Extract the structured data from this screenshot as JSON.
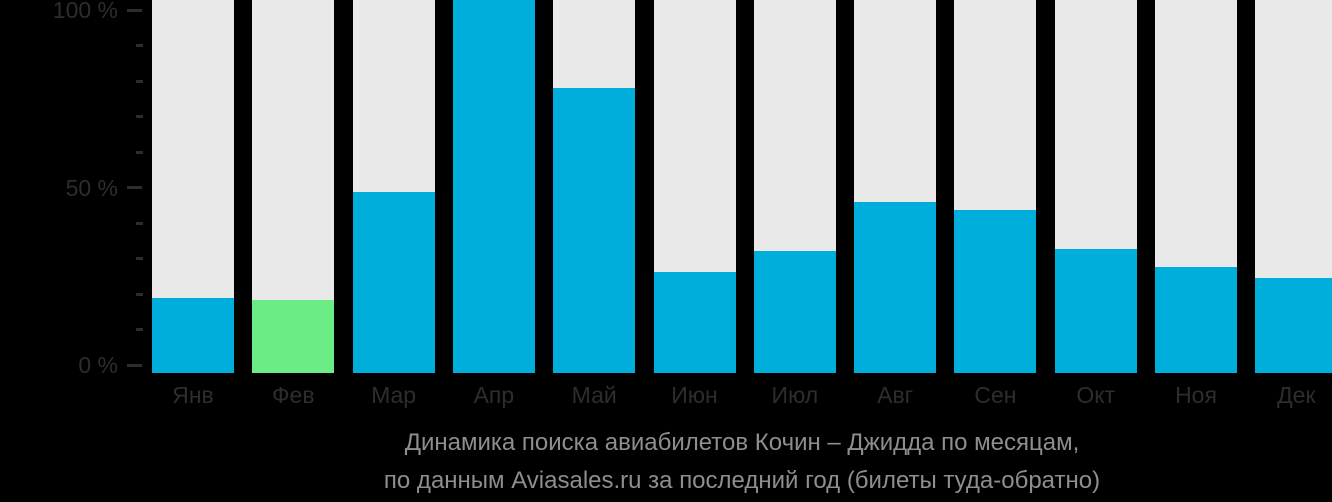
{
  "page": {
    "background": "#000000"
  },
  "colors": {
    "bar_blue": "#00AEDB",
    "bar_green": "#6BEC84",
    "bar_track": "#E9E9E9",
    "axis_text": "#2D2D2D",
    "title_text": "#8E8E8E"
  },
  "y_axis": {
    "tick_labels": [
      {
        "label": "100 %",
        "value": 100
      },
      {
        "label": "50 %",
        "value": 50
      },
      {
        "label": "0 %",
        "value": 0
      }
    ],
    "minor_tick_values": [
      90,
      80,
      70,
      60,
      40,
      30,
      20,
      10
    ]
  },
  "chart_data": {
    "type": "bar",
    "title": "Динамика поиска авиабилетов Кочин – Джидда по месяцам, по данным Aviasales.ru за последний год (билеты туда-обратно)",
    "categories": [
      "Янв",
      "Фев",
      "Мар",
      "Апр",
      "Май",
      "Июн",
      "Июл",
      "Авг",
      "Сен",
      "Окт",
      "Ноя",
      "Дек"
    ],
    "values": [
      20.0,
      19.6,
      48.6,
      100,
      76.3,
      27.0,
      32.8,
      45.8,
      43.7,
      33.2,
      28.5,
      25.4
    ],
    "value_scale": "percent relative to peak month (Апр = 100 %)",
    "highlight_index": 1,
    "highlighted_category": "Фев",
    "ylim": [
      0,
      100
    ],
    "y_tick_labels": [
      "0 %",
      "50 %",
      "100 %"
    ],
    "grid": false,
    "legend": null
  },
  "caption": {
    "line1": "Динамика поиска авиабилетов Кочин – Джидда по месяцам,",
    "line2": "по данным Aviasales.ru за последний год (билеты туда-обратно)"
  }
}
